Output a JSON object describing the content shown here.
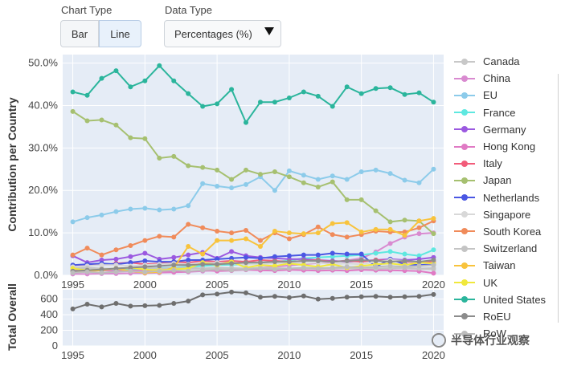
{
  "controls": {
    "chart_type_label": "Chart Type",
    "bar_label": "Bar",
    "line_label": "Line",
    "data_type_label": "Data Type",
    "data_type_value": "Percentages (%)"
  },
  "watermark": "半导体行业观察",
  "chart_data": [
    {
      "type": "line",
      "ylabel": "Contribution per Country",
      "xlim": [
        1994.3,
        2020.7
      ],
      "ylim": [
        0,
        52
      ],
      "x": [
        1995,
        1996,
        1997,
        1998,
        1999,
        2000,
        2001,
        2002,
        2003,
        2004,
        2005,
        2006,
        2007,
        2008,
        2009,
        2010,
        2011,
        2012,
        2013,
        2014,
        2015,
        2016,
        2017,
        2018,
        2019,
        2020
      ],
      "x_ticks": [
        1995,
        2000,
        2005,
        2010,
        2015,
        2020
      ],
      "y_ticks": [
        0,
        10,
        20,
        30,
        40,
        50
      ],
      "y_tick_labels": [
        "0.0%",
        "10.0%",
        "20.0%",
        "30.0%",
        "40.0%",
        "50.0%"
      ],
      "series": [
        {
          "name": "Canada",
          "color": "#c8c8c8",
          "values": [
            2.0,
            1.8,
            1.6,
            1.5,
            1.5,
            1.6,
            1.6,
            1.5,
            1.5,
            1.6,
            1.7,
            1.6,
            1.6,
            1.7,
            1.6,
            1.5,
            1.6,
            1.5,
            1.6,
            1.6,
            1.5,
            1.5,
            1.6,
            1.6,
            1.5,
            1.4
          ]
        },
        {
          "name": "China",
          "color": "#d98ad0",
          "values": [
            0.3,
            0.3,
            0.4,
            0.4,
            0.5,
            0.5,
            0.6,
            0.7,
            0.8,
            1.0,
            1.2,
            1.3,
            1.5,
            1.8,
            2.0,
            2.3,
            2.6,
            2.9,
            3.2,
            3.5,
            4.0,
            5.5,
            7.5,
            9.0,
            9.8,
            10.0
          ]
        },
        {
          "name": "EU",
          "color": "#8ccbea",
          "values": [
            12.6,
            13.6,
            14.2,
            15.0,
            15.6,
            15.8,
            15.4,
            15.6,
            16.4,
            21.6,
            21.0,
            20.6,
            21.4,
            23.2,
            20.0,
            24.6,
            23.6,
            22.6,
            23.4,
            22.6,
            24.4,
            24.8,
            24.0,
            22.4,
            21.8,
            25.0
          ]
        },
        {
          "name": "France",
          "color": "#5ee8e0",
          "values": [
            1.0,
            1.1,
            1.2,
            1.3,
            1.4,
            1.6,
            1.7,
            1.8,
            2.0,
            2.2,
            2.4,
            2.5,
            2.6,
            3.0,
            3.2,
            3.5,
            4.0,
            4.2,
            4.4,
            4.6,
            4.8,
            5.2,
            5.6,
            5.0,
            4.6,
            6.0
          ]
        },
        {
          "name": "Germany",
          "color": "#9b59e0",
          "values": [
            4.6,
            3.0,
            3.6,
            3.8,
            4.4,
            5.2,
            3.8,
            4.2,
            4.8,
            5.4,
            4.0,
            5.6,
            4.6,
            4.2,
            4.0,
            3.8,
            3.8,
            3.6,
            3.4,
            3.2,
            3.4,
            3.6,
            3.8,
            3.6,
            3.8,
            4.2
          ]
        },
        {
          "name": "Hong Kong",
          "color": "#e07ac4",
          "values": [
            1.2,
            1.0,
            1.2,
            1.0,
            1.2,
            1.1,
            0.9,
            0.8,
            0.9,
            1.2,
            1.0,
            1.1,
            1.3,
            1.2,
            1.1,
            1.3,
            1.2,
            1.1,
            1.2,
            1.1,
            1.3,
            1.2,
            1.2,
            1.1,
            1.0,
            0.5
          ]
        },
        {
          "name": "Italy",
          "color": "#f25c7a",
          "values": [
            2.0,
            2.6,
            2.4,
            2.8,
            3.0,
            2.6,
            2.8,
            3.2,
            3.0,
            3.4,
            3.2,
            3.4,
            3.2,
            3.6,
            3.4,
            3.2,
            3.4,
            3.6,
            3.2,
            3.4,
            3.2,
            3.6,
            3.4,
            3.2,
            3.0,
            3.2
          ]
        },
        {
          "name": "Japan",
          "color": "#a6c070",
          "values": [
            38.6,
            36.4,
            36.6,
            35.4,
            32.4,
            32.2,
            27.6,
            28.0,
            25.8,
            25.4,
            24.8,
            22.6,
            24.8,
            23.8,
            24.4,
            23.2,
            21.8,
            20.8,
            22.0,
            17.8,
            17.8,
            15.2,
            12.6,
            13.0,
            12.8,
            9.8
          ]
        },
        {
          "name": "Netherlands",
          "color": "#4a57e3",
          "values": [
            2.4,
            2.6,
            2.8,
            2.6,
            3.0,
            3.4,
            3.2,
            3.2,
            3.6,
            3.6,
            3.8,
            4.0,
            4.2,
            4.0,
            4.4,
            4.6,
            4.8,
            4.8,
            5.2,
            5.0,
            5.0,
            2.0,
            3.8,
            2.6,
            2.4,
            2.6
          ]
        },
        {
          "name": "Singapore",
          "color": "#d8d8d8",
          "values": [
            2.0,
            2.2,
            2.4,
            2.4,
            2.2,
            2.4,
            2.6,
            2.8,
            2.6,
            2.8,
            3.0,
            2.8,
            2.6,
            2.6,
            2.8,
            3.0,
            2.8,
            3.0,
            2.6,
            2.8,
            2.6,
            3.2,
            3.6,
            3.4,
            3.0,
            2.8
          ]
        },
        {
          "name": "South Korea",
          "color": "#f08b5a",
          "values": [
            4.8,
            6.4,
            4.8,
            6.0,
            7.0,
            8.2,
            9.2,
            9.0,
            12.0,
            11.2,
            10.4,
            10.0,
            10.6,
            8.2,
            10.0,
            8.6,
            9.6,
            11.4,
            9.6,
            9.0,
            9.6,
            10.4,
            10.2,
            10.2,
            11.2,
            12.8
          ]
        },
        {
          "name": "Switzerland",
          "color": "#c4c4c4",
          "values": [
            1.6,
            1.7,
            1.5,
            1.6,
            1.7,
            1.8,
            1.6,
            1.7,
            1.8,
            1.6,
            1.8,
            1.7,
            1.6,
            1.8,
            1.7,
            1.6,
            1.7,
            1.8,
            1.6,
            1.7,
            1.8,
            1.6,
            1.7,
            1.8,
            1.6,
            1.7
          ]
        },
        {
          "name": "Taiwan",
          "color": "#f8c33c",
          "values": [
            0.8,
            1.0,
            1.2,
            1.6,
            1.0,
            0.6,
            0.8,
            1.8,
            6.8,
            5.0,
            8.2,
            8.2,
            8.6,
            6.8,
            10.4,
            10.0,
            9.8,
            10.0,
            12.2,
            12.4,
            10.2,
            10.8,
            10.8,
            9.4,
            12.8,
            13.4
          ]
        },
        {
          "name": "UK",
          "color": "#f0e83c",
          "values": [
            1.6,
            1.2,
            1.4,
            1.6,
            1.8,
            1.4,
            1.2,
            1.4,
            1.6,
            3.0,
            2.4,
            3.2,
            1.8,
            2.4,
            2.2,
            2.8,
            2.4,
            2.0,
            2.6,
            1.8,
            2.2,
            2.6,
            2.8,
            2.4,
            3.0,
            2.8
          ]
        },
        {
          "name": "United States",
          "color": "#2bb59c",
          "values": [
            43.2,
            42.4,
            46.4,
            48.2,
            44.4,
            45.8,
            49.4,
            45.8,
            42.8,
            39.8,
            40.4,
            43.8,
            36.0,
            40.8,
            40.8,
            41.8,
            43.2,
            42.2,
            39.8,
            44.4,
            42.8,
            44.0,
            44.2,
            42.6,
            43.0,
            40.8
          ]
        },
        {
          "name": "RoEU",
          "color": "#8c8c8c",
          "values": [
            1.0,
            1.2,
            1.4,
            1.6,
            1.8,
            2.0,
            2.2,
            2.4,
            2.4,
            2.6,
            2.6,
            2.8,
            3.0,
            3.0,
            3.2,
            3.2,
            3.4,
            3.4,
            3.2,
            3.4,
            3.6,
            3.4,
            3.2,
            3.4,
            3.2,
            3.6
          ]
        },
        {
          "name": "RoW",
          "color": "#bdbdbd",
          "values": [
            0.6,
            0.8,
            0.6,
            0.8,
            1.0,
            0.8,
            1.0,
            1.2,
            1.0,
            1.2,
            1.4,
            1.2,
            1.4,
            1.6,
            1.4,
            1.6,
            1.8,
            1.6,
            1.8,
            2.0,
            1.8,
            2.0,
            2.2,
            2.0,
            2.2,
            2.4
          ]
        }
      ]
    },
    {
      "type": "line",
      "ylabel": "Total Overall",
      "xlim": [
        1994.3,
        2020.7
      ],
      "ylim": [
        0,
        720
      ],
      "x": [
        1995,
        1996,
        1997,
        1998,
        1999,
        2000,
        2001,
        2002,
        2003,
        2004,
        2005,
        2006,
        2007,
        2008,
        2009,
        2010,
        2011,
        2012,
        2013,
        2014,
        2015,
        2016,
        2017,
        2018,
        2019,
        2020
      ],
      "x_ticks": [
        1995,
        2000,
        2005,
        2010,
        2015,
        2020
      ],
      "y_ticks": [
        0,
        200,
        400,
        600
      ],
      "series": [
        {
          "color": "#6e6e6e",
          "values": [
            475,
            535,
            500,
            545,
            510,
            515,
            520,
            545,
            575,
            655,
            665,
            690,
            680,
            625,
            635,
            620,
            640,
            600,
            610,
            625,
            630,
            635,
            625,
            630,
            635,
            660
          ]
        }
      ]
    }
  ]
}
